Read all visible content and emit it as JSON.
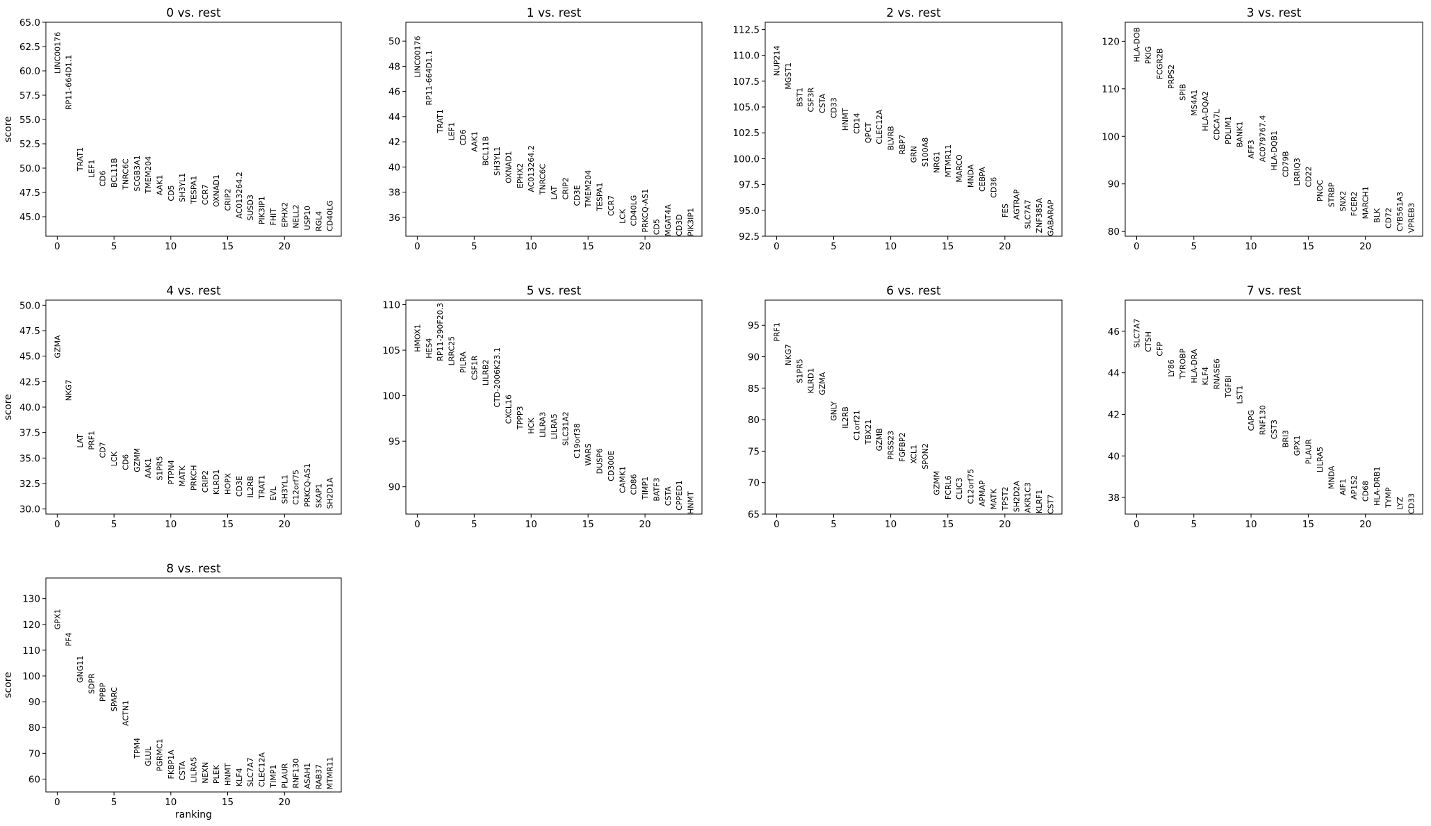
{
  "figure": {
    "xlabel": "ranking",
    "ylabel": "score"
  },
  "chart_data": [
    {
      "type": "scatter",
      "title": "0 vs. rest",
      "ylabel": "score",
      "xlabel": "",
      "xlim": [
        -1,
        25
      ],
      "ylim": [
        43,
        65
      ],
      "xticks": [
        0,
        5,
        10,
        15,
        20
      ],
      "yticks": [
        45.0,
        47.5,
        50.0,
        52.5,
        55.0,
        57.5,
        60.0,
        62.5,
        65.0
      ],
      "ytick_decimals": 1,
      "genes": [
        "LINC00176",
        "RP11-664D1.1",
        "TRAT1",
        "LEF1",
        "CD6",
        "BCL11B",
        "TNRC6C",
        "SCGB3A1",
        "TMEM204",
        "AAK1",
        "CD5",
        "SH3YL1",
        "TESPA1",
        "CCR7",
        "OXNAD1",
        "CRIP2",
        "AC013264.2",
        "SUSD3",
        "PIK3IP1",
        "FHIT",
        "EPHX2",
        "NELL2",
        "USP10",
        "RGL4",
        "CD40LG"
      ],
      "scores": [
        59.7,
        56.0,
        49.7,
        49.0,
        48.1,
        48.0,
        47.8,
        47.6,
        47.4,
        47.2,
        46.6,
        46.5,
        46.3,
        46.2,
        46.0,
        45.6,
        44.8,
        44.6,
        44.2,
        44.1,
        43.9,
        43.8,
        43.6,
        43.5,
        43.5
      ]
    },
    {
      "type": "scatter",
      "title": "1 vs. rest",
      "ylabel": "",
      "xlabel": "",
      "xlim": [
        -1,
        25
      ],
      "ylim": [
        34.5,
        51.5
      ],
      "xticks": [
        0,
        5,
        10,
        15,
        20
      ],
      "yticks": [
        36,
        38,
        40,
        42,
        44,
        46,
        48,
        50
      ],
      "ytick_decimals": 0,
      "genes": [
        "LINC00176",
        "RP11-664D1.1",
        "TRAT1",
        "LEF1",
        "CD6",
        "AAK1",
        "BCL11B",
        "SH3YL1",
        "OXNAD1",
        "EPHX2",
        "AC013264.2",
        "TNRC6C",
        "LAT",
        "CRIP2",
        "CD3E",
        "TMEM204",
        "TESPA1",
        "CCR7",
        "LCK",
        "CD40LG",
        "PRKCQ-AS1",
        "CD5",
        "MGAT4A",
        "CD3D",
        "PIK3IP1"
      ],
      "scores": [
        47.1,
        44.9,
        42.7,
        42.1,
        41.7,
        41.2,
        40.1,
        39.3,
        38.7,
        38.3,
        38.0,
        37.8,
        37.4,
        37.4,
        36.9,
        36.8,
        36.5,
        36.1,
        35.5,
        35.3,
        34.8,
        34.6,
        34.5,
        34.5,
        34.5
      ]
    },
    {
      "type": "scatter",
      "title": "2 vs. rest",
      "ylabel": "",
      "xlabel": "",
      "xlim": [
        -1,
        25
      ],
      "ylim": [
        92.5,
        113.2
      ],
      "xticks": [
        0,
        5,
        10,
        15,
        20
      ],
      "yticks": [
        92.5,
        95.0,
        97.5,
        100.0,
        102.5,
        105.0,
        107.5,
        110.0,
        112.5
      ],
      "ytick_decimals": 1,
      "genes": [
        "NUP214",
        "MGST1",
        "BST1",
        "CSF3R",
        "CSTA",
        "CD33",
        "HNMT",
        "CD14",
        "QPCT",
        "CLEC12A",
        "BLVRB",
        "RBP7",
        "GRN",
        "S100A8",
        "NRG1",
        "MTMR11",
        "MARCO",
        "MNDA",
        "CEBPA",
        "CD36",
        "FES",
        "AGTRAP",
        "SLC7A7",
        "ZNF385A",
        "GABARAP"
      ],
      "scores": [
        108.0,
        106.7,
        105.0,
        104.5,
        104.4,
        103.9,
        102.7,
        102.4,
        101.5,
        101.4,
        100.8,
        100.4,
        99.6,
        99.2,
        98.6,
        98.2,
        97.7,
        97.2,
        96.8,
        96.2,
        94.3,
        94.1,
        93.2,
        92.8,
        92.5
      ]
    },
    {
      "type": "scatter",
      "title": "3 vs. rest",
      "ylabel": "",
      "xlabel": "",
      "xlim": [
        -1,
        25
      ],
      "ylim": [
        79,
        124
      ],
      "xticks": [
        0,
        5,
        10,
        15,
        20
      ],
      "yticks": [
        80,
        90,
        100,
        110,
        120
      ],
      "ytick_decimals": 0,
      "genes": [
        "HLA-DOB",
        "PKIG",
        "FCGR2B",
        "PRPS2",
        "SPIB",
        "MS4A1",
        "HLA-DQA2",
        "CDCA7L",
        "PDLIM1",
        "BANK1",
        "AFF3",
        "AC079767.4",
        "HLA-DQB1",
        "CD79B",
        "LRRIQ3",
        "CD22",
        "PNOC",
        "STRBP",
        "SNX2",
        "FCER2",
        "MARCH1",
        "BLK",
        "CD72",
        "CYB561A3",
        "VPREB3"
      ],
      "scores": [
        115.6,
        115.2,
        112.0,
        110.0,
        107.5,
        104.3,
        101.1,
        99.2,
        98.3,
        97.7,
        95.3,
        94.6,
        92.8,
        91.4,
        89.6,
        89.3,
        86.3,
        85.1,
        84.2,
        83.2,
        82.6,
        81.8,
        80.6,
        80.0,
        79.7
      ]
    },
    {
      "type": "scatter",
      "title": "4 vs. rest",
      "ylabel": "score",
      "xlabel": "",
      "xlim": [
        -1,
        25
      ],
      "ylim": [
        29.5,
        50.5
      ],
      "xticks": [
        0,
        5,
        10,
        15,
        20
      ],
      "yticks": [
        30.0,
        32.5,
        35.0,
        37.5,
        40.0,
        42.5,
        45.0,
        47.5,
        50.0
      ],
      "ytick_decimals": 1,
      "genes": [
        "GZMA",
        "NKG7",
        "LAT",
        "PRF1",
        "CD7",
        "LCK",
        "CD6",
        "GZMM",
        "AAK1",
        "S1PR5",
        "PTPN4",
        "MATK",
        "PRKCH",
        "CRIP2",
        "KLRD1",
        "HOPX",
        "CD3E",
        "IL2RB",
        "TRAT1",
        "EVL",
        "SH3YL1",
        "C12orf75",
        "PRKCQ-AS1",
        "SKAP1",
        "SH2D1A"
      ],
      "scores": [
        44.8,
        40.6,
        36.0,
        35.8,
        35.0,
        34.2,
        33.8,
        33.6,
        33.0,
        32.8,
        32.4,
        32.2,
        31.8,
        31.6,
        31.4,
        31.4,
        31.2,
        31.1,
        31.0,
        30.8,
        30.5,
        30.4,
        30.2,
        30.1,
        30.0
      ]
    },
    {
      "type": "scatter",
      "title": "5 vs. rest",
      "ylabel": "",
      "xlabel": "",
      "xlim": [
        -1,
        25
      ],
      "ylim": [
        87,
        110.5
      ],
      "xticks": [
        0,
        5,
        10,
        15,
        20
      ],
      "yticks": [
        90,
        95,
        100,
        105,
        110
      ],
      "ytick_decimals": 0,
      "genes": [
        "HMOX1",
        "HES4",
        "RP11-290F20.3",
        "LRRC25",
        "PILRA",
        "CSF1R",
        "LILRB2",
        "CTD-2006K23.1",
        "CXCL16",
        "TPPP3",
        "HCK",
        "LILRA3",
        "LILRA5",
        "SLC31A2",
        "C19orf38",
        "WARS",
        "DUSP6",
        "CD300E",
        "CAMK1",
        "CD86",
        "TIMP1",
        "BATF3",
        "CSTA",
        "CPPED1",
        "HNMT"
      ],
      "scores": [
        104.8,
        104.1,
        103.8,
        103.3,
        102.5,
        101.7,
        101.1,
        98.7,
        96.9,
        96.3,
        95.8,
        95.4,
        95.2,
        94.5,
        93.1,
        92.3,
        91.4,
        90.6,
        89.3,
        89.1,
        88.6,
        88.4,
        87.9,
        87.4,
        87.0
      ]
    },
    {
      "type": "scatter",
      "title": "6 vs. rest",
      "ylabel": "",
      "xlabel": "",
      "xlim": [
        -1,
        25
      ],
      "ylim": [
        65,
        99
      ],
      "xticks": [
        0,
        5,
        10,
        15,
        20
      ],
      "yticks": [
        65,
        70,
        75,
        80,
        85,
        90,
        95
      ],
      "ytick_decimals": 0,
      "genes": [
        "PRF1",
        "NKG7",
        "S1PR5",
        "KLRD1",
        "GZMA",
        "GNLY",
        "IL2RB",
        "C1orf21",
        "TBX21",
        "GZMB",
        "PRSS23",
        "FGFBP2",
        "XCL1",
        "SPON2",
        "GZMM",
        "FCRL6",
        "CLIC3",
        "C12orf75",
        "APMAP",
        "MATK",
        "TPST2",
        "SH2D2A",
        "AKR1C3",
        "KLRF1",
        "CST7"
      ],
      "scores": [
        92.4,
        88.6,
        85.8,
        84.2,
        83.9,
        79.8,
        78.6,
        76.7,
        76.1,
        75.0,
        73.6,
        73.3,
        73.0,
        72.1,
        68.0,
        67.3,
        67.3,
        66.6,
        66.2,
        65.7,
        65.6,
        65.3,
        65.2,
        65.1,
        65.0
      ]
    },
    {
      "type": "scatter",
      "title": "7 vs. rest",
      "ylabel": "",
      "xlabel": "",
      "xlim": [
        -1,
        25
      ],
      "ylim": [
        37.2,
        47.5
      ],
      "xticks": [
        0,
        5,
        10,
        15,
        20
      ],
      "yticks": [
        38,
        40,
        42,
        44,
        46
      ],
      "ytick_decimals": 0,
      "genes": [
        "SLC7A7",
        "CTSH",
        "CFP",
        "LY86",
        "TYROBP",
        "HLA-DRA",
        "KLF4",
        "RNASE6",
        "TGFBI",
        "LST1",
        "CAPG",
        "RNF130",
        "CST3",
        "BRI3",
        "GPX1",
        "PLAUR",
        "LILRA5",
        "MNDA",
        "AIF1",
        "AP1S2",
        "CD68",
        "HLA-DRB1",
        "TYMP",
        "LYZ",
        "CD33"
      ],
      "scores": [
        45.2,
        45.0,
        44.8,
        43.8,
        43.7,
        43.5,
        43.4,
        43.2,
        42.8,
        42.5,
        41.2,
        41.0,
        40.8,
        40.4,
        40.0,
        39.6,
        39.2,
        38.4,
        38.1,
        37.9,
        37.8,
        37.6,
        37.5,
        37.4,
        37.2
      ]
    },
    {
      "type": "scatter",
      "title": "8 vs. rest",
      "ylabel": "score",
      "xlabel": "ranking",
      "xlim": [
        -1,
        25
      ],
      "ylim": [
        55,
        138
      ],
      "xticks": [
        0,
        5,
        10,
        15,
        20
      ],
      "yticks": [
        60,
        70,
        80,
        90,
        100,
        110,
        120,
        130
      ],
      "ytick_decimals": 0,
      "genes": [
        "GPX1",
        "PF4",
        "GNG11",
        "SDPR",
        "PPBP",
        "SPARC",
        "ACTN1",
        "TPM4",
        "GLUL",
        "PGRMC1",
        "FKBP1A",
        "CSTA",
        "LILRA5",
        "NEXN",
        "PLEK",
        "HNMT",
        "KLF4",
        "SLC7A7",
        "CLEC12A",
        "TIMP1",
        "PLAUR",
        "RNF130",
        "ASAH1",
        "RAB37",
        "MTMR11"
      ],
      "scores": [
        118.0,
        111.5,
        97.3,
        93.0,
        90.0,
        86.2,
        80.6,
        68.0,
        65.0,
        63.0,
        60.0,
        59.4,
        58.6,
        58.3,
        58.2,
        57.4,
        57.1,
        57.0,
        56.9,
        56.7,
        56.4,
        56.4,
        56.2,
        56.0,
        55.9
      ]
    }
  ]
}
